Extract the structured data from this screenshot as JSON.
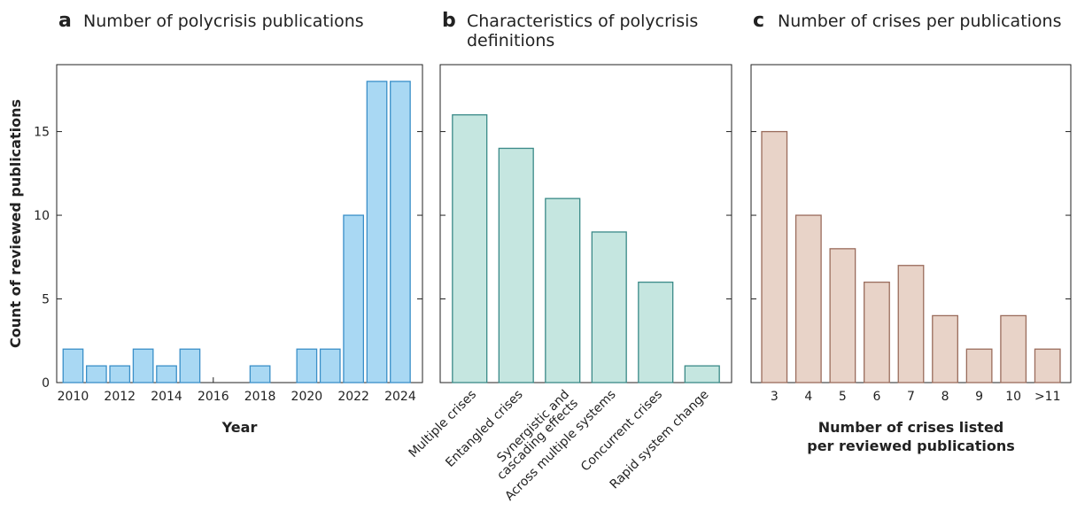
{
  "chart_data": [
    {
      "type": "bar",
      "panel": "a",
      "title": "Number of polycrisis publications",
      "xlabel": "Year",
      "ylabel": "Count of reviewed publications",
      "x": [
        2010,
        2011,
        2012,
        2013,
        2014,
        2015,
        2016,
        2017,
        2018,
        2019,
        2020,
        2021,
        2022,
        2023,
        2024
      ],
      "values": [
        2,
        1,
        1,
        2,
        1,
        2,
        0,
        0,
        1,
        0,
        2,
        2,
        10,
        18,
        18
      ],
      "color": "#a9d8f3",
      "edge_color": "#3a8fc8",
      "xlim": [
        2009.3,
        2024.95
      ],
      "xticks": [
        2010,
        2012,
        2014,
        2016,
        2018,
        2020,
        2022,
        2024
      ],
      "ylim": [
        0,
        19
      ],
      "yticks": [
        0,
        5,
        10,
        15
      ],
      "ytick_labels": true
    },
    {
      "type": "bar",
      "panel": "b",
      "title": "Characteristics of polycrisis\ndefinitions",
      "categories": [
        "Multiple crises",
        "Entangled crises",
        "Synergistic and\ncascading effects",
        "Across multiple systems",
        "Concurrent crises",
        "Rapid system change"
      ],
      "values": [
        16,
        14,
        11,
        9,
        6,
        1
      ],
      "rotate_labels": true,
      "color": "#c5e6e0",
      "edge_color": "#3a8a88",
      "ylim": [
        0,
        19
      ],
      "yticks": [
        0,
        5,
        10,
        15
      ],
      "ytick_labels": false
    },
    {
      "type": "bar",
      "panel": "c",
      "title": "Number of crises per publications",
      "xlabel": "Number of crises listed\nper reviewed publications",
      "categories": [
        "3",
        "4",
        "5",
        "6",
        "7",
        "8",
        "9",
        "10",
        ">11"
      ],
      "values": [
        15,
        10,
        8,
        6,
        7,
        4,
        2,
        4,
        2
      ],
      "color": "#e8d3c8",
      "edge_color": "#9a6c5c",
      "ylim": [
        0,
        19
      ],
      "yticks": [
        0,
        5,
        10,
        15
      ],
      "ytick_labels": false
    }
  ]
}
